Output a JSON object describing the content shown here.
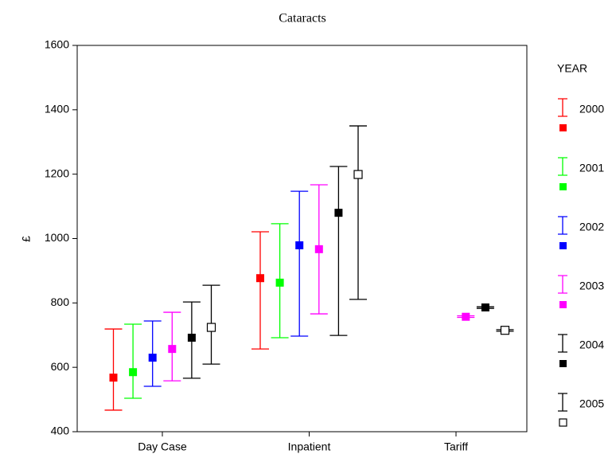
{
  "chart_data": {
    "type": "errorbar",
    "title": "Cataracts",
    "ylabel": "£",
    "legend_title": "YEAR",
    "categories": [
      "Day Case",
      "Inpatient",
      "Tariff"
    ],
    "ylim": [
      400,
      1600
    ],
    "yticks": [
      400,
      600,
      800,
      1000,
      1200,
      1400,
      1600
    ],
    "series": [
      {
        "name": "2000",
        "color": "#ff0000",
        "marker": "filled",
        "values": [
          568,
          877,
          null
        ],
        "low": [
          467,
          657,
          null
        ],
        "high": [
          719,
          1021,
          null
        ]
      },
      {
        "name": "2001",
        "color": "#00ff00",
        "marker": "filled",
        "values": [
          585,
          863,
          null
        ],
        "low": [
          504,
          692,
          null
        ],
        "high": [
          734,
          1046,
          null
        ]
      },
      {
        "name": "2002",
        "color": "#0000ff",
        "marker": "filled",
        "values": [
          630,
          979,
          null
        ],
        "low": [
          541,
          697,
          null
        ],
        "high": [
          744,
          1147,
          null
        ]
      },
      {
        "name": "2003",
        "color": "#ff00ff",
        "marker": "filled",
        "values": [
          657,
          967,
          757
        ],
        "low": [
          558,
          766,
          755
        ],
        "high": [
          771,
          1167,
          760
        ]
      },
      {
        "name": "2004",
        "color": "#000000",
        "marker": "filled",
        "values": [
          692,
          1080,
          786
        ],
        "low": [
          566,
          699,
          783
        ],
        "high": [
          803,
          1224,
          788
        ]
      },
      {
        "name": "2005",
        "color": "#000000",
        "marker": "open",
        "values": [
          724,
          1199,
          715
        ],
        "low": [
          610,
          811,
          712
        ],
        "high": [
          855,
          1350,
          717
        ]
      }
    ]
  }
}
